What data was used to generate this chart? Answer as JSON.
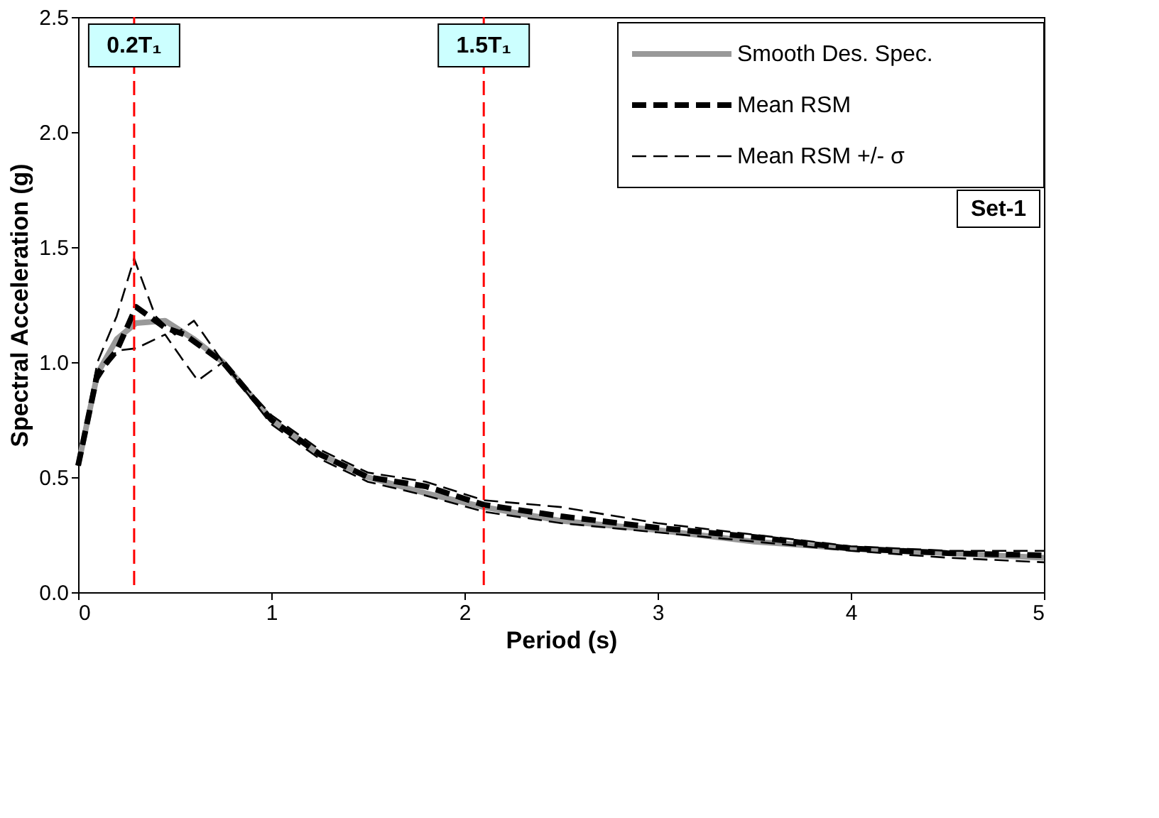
{
  "chart_data": {
    "type": "line",
    "xlabel": "Period (s)",
    "ylabel": "Spectral Acceleration (g)",
    "x": [
      0,
      0.1,
      0.2,
      0.3,
      0.45,
      0.6,
      0.75,
      1.0,
      1.25,
      1.5,
      1.8,
      2.1,
      2.5,
      3,
      3.5,
      4,
      4.5,
      5
    ],
    "series": [
      {
        "name": "Smooth Des. Spec.",
        "color": "#999999",
        "line_style": "solid",
        "values": [
          0.55,
          0.95,
          1.1,
          1.17,
          1.18,
          1.1,
          1.0,
          0.75,
          0.6,
          0.5,
          0.43,
          0.37,
          0.31,
          0.27,
          0.22,
          0.19,
          0.17,
          0.15
        ]
      },
      {
        "name": "Mean RSM",
        "color": "#000000",
        "line_style": "dashed",
        "x": [
          0,
          0.1,
          0.2,
          0.3,
          0.45,
          0.55,
          0.75,
          1.0,
          1.25,
          1.5,
          1.8,
          2.1,
          2.5,
          3,
          3.5,
          4,
          4.5,
          5
        ],
        "values": [
          0.55,
          0.95,
          1.05,
          1.24,
          1.15,
          1.12,
          1.0,
          0.75,
          0.6,
          0.5,
          0.46,
          0.38,
          0.33,
          0.28,
          0.24,
          0.19,
          0.17,
          0.16
        ]
      },
      {
        "name": "Mean RSM +/- σ",
        "color": "#000000",
        "line_style": "dashed",
        "x": [
          0,
          0.1,
          0.2,
          0.29,
          0.4,
          0.5,
          0.6,
          0.75,
          1.0,
          1.25,
          1.5,
          1.8,
          2.1,
          2.5,
          3,
          3.5,
          4,
          4.5,
          5
        ],
        "values": [
          0.55,
          1.0,
          1.2,
          1.45,
          1.2,
          1.12,
          1.18,
          1.0,
          0.77,
          0.62,
          0.52,
          0.48,
          0.4,
          0.37,
          0.3,
          0.25,
          0.2,
          0.18,
          0.18
        ]
      },
      {
        "color": "#000000",
        "line_style": "dashed",
        "x": [
          0,
          0.1,
          0.2,
          0.3,
          0.45,
          0.55,
          0.62,
          0.75,
          1.0,
          1.25,
          1.5,
          1.8,
          2.1,
          2.5,
          3,
          3.5,
          4,
          4.5,
          5
        ],
        "values": [
          0.55,
          0.92,
          1.05,
          1.06,
          1.12,
          1.0,
          0.92,
          1.0,
          0.73,
          0.58,
          0.48,
          0.42,
          0.35,
          0.3,
          0.26,
          0.22,
          0.18,
          0.15,
          0.13
        ]
      }
    ],
    "xlim": [
      0,
      5
    ],
    "xticks": [
      0,
      1,
      2,
      3,
      4,
      5
    ],
    "ylim": [
      0,
      2.5
    ],
    "yticks": [
      {
        "value": 0,
        "label": "0.0"
      },
      0.5,
      {
        "value": 1,
        "label": "1.0"
      },
      1.5,
      {
        "value": 2,
        "label": "2.0"
      },
      2.5
    ],
    "ref_lines": [
      {
        "axis": "x",
        "value": 0.29,
        "label": "0.2T₁",
        "color": "#ff0000",
        "line_style": "dashed"
      },
      {
        "axis": "x",
        "value": 2.1,
        "label": "1.5T₁",
        "color": "#ff0000",
        "line_style": "dashed"
      }
    ],
    "annotations": [
      "Set-1"
    ],
    "grid": false,
    "legend": "top right"
  }
}
